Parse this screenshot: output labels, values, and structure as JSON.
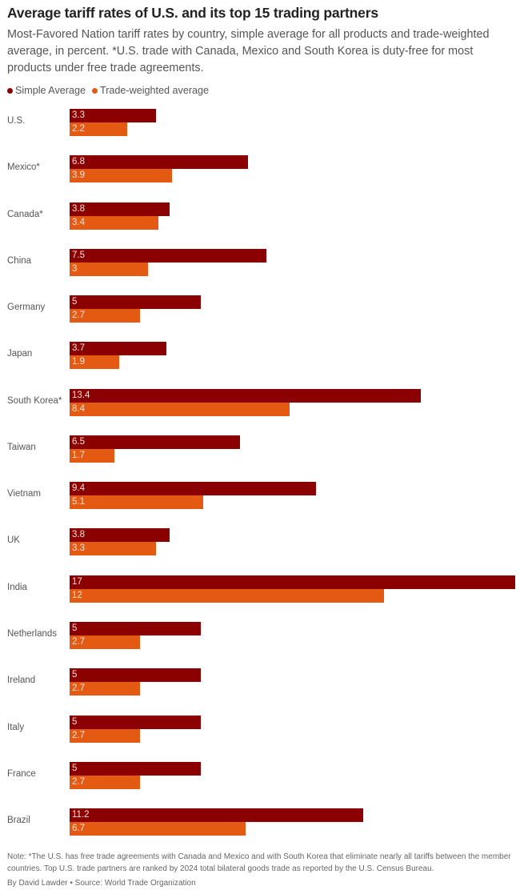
{
  "title": "Average tariff rates of U.S. and its top 15 trading partners",
  "subtitle": "Most-Favored Nation tariff rates by country, simple average for all products and trade-weighted average, in percent. *U.S. trade with Canada, Mexico and South Korea is duty-free for most products under free trade agreements.",
  "note": "Note: *The U.S. has free trade agreements with Canada and Mexico and with South Korea that eliminate nearly all tariffs between the member countries. Top U.S. trade partners are ranked by 2024 total bilateral goods trade as reported by the U.S. Census Bureau.",
  "byline": "By David Lawder • Source: World Trade Organization",
  "chart_data": {
    "type": "bar",
    "orientation": "horizontal",
    "categories": [
      "U.S.",
      "Mexico*",
      "Canada*",
      "China",
      "Germany",
      "Japan",
      "South Korea*",
      "Taiwan",
      "Vietnam",
      "UK",
      "India",
      "Netherlands",
      "Ireland",
      "Italy",
      "France",
      "Brazil"
    ],
    "series": [
      {
        "name": "Simple Average",
        "color": "#8b0000",
        "values": [
          3.3,
          6.8,
          3.8,
          7.5,
          5,
          3.7,
          13.4,
          6.5,
          9.4,
          3.8,
          17,
          5,
          5,
          5,
          5,
          11.2
        ]
      },
      {
        "name": "Trade-weighted average",
        "color": "#e55a12",
        "values": [
          2.2,
          3.9,
          3.4,
          3,
          2.7,
          1.9,
          8.4,
          1.7,
          5.1,
          3.3,
          12,
          2.7,
          2.7,
          2.7,
          2.7,
          6.7
        ]
      }
    ],
    "xlim": [
      0,
      17
    ],
    "grid": false,
    "legend": "top-left",
    "data_labels": true
  }
}
